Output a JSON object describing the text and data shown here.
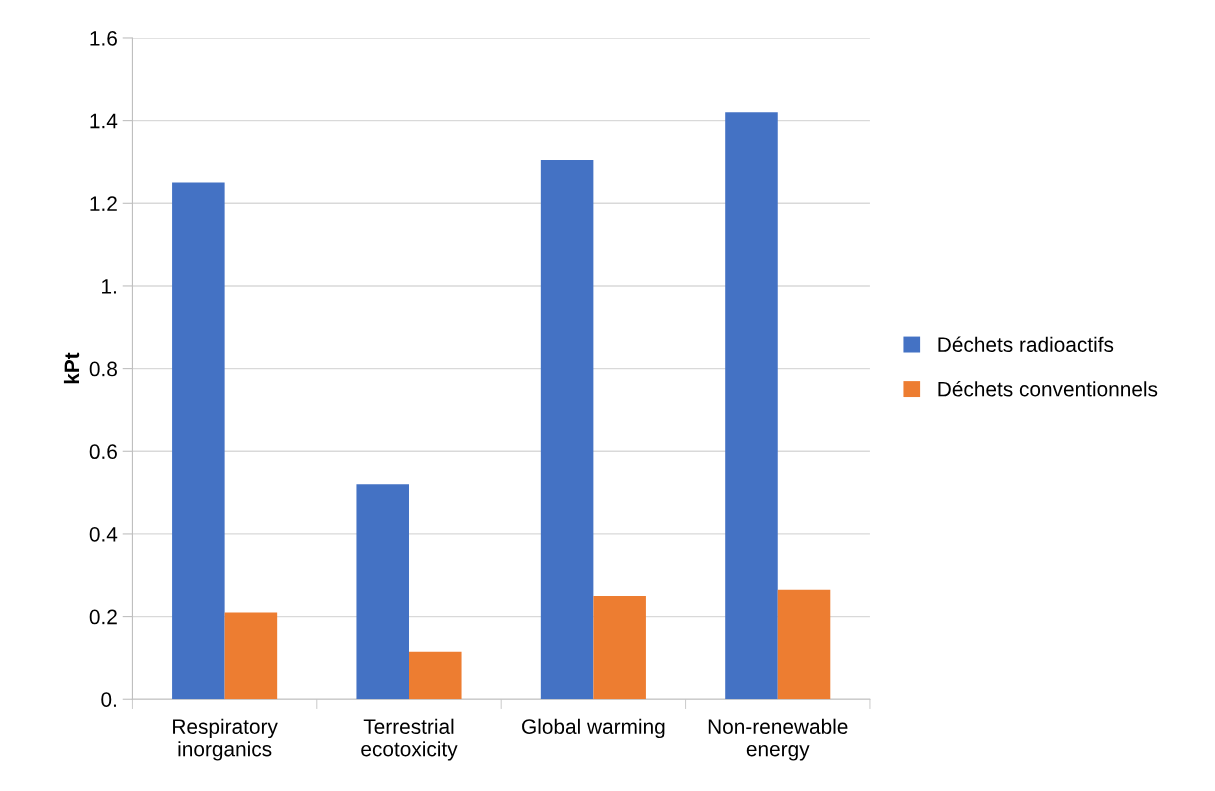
{
  "chart_data": {
    "type": "bar",
    "ylabel": "kPt",
    "categories": [
      "Respiratory\ninorganics",
      "Terrestrial\necotoxicity",
      "Global warming",
      "Non-renewable\nenergy"
    ],
    "series": [
      {
        "name": "Déchets radioactifs",
        "color": "#4472c4",
        "values": [
          1.25,
          0.52,
          1.305,
          1.42
        ]
      },
      {
        "name": "Déchets conventionnels",
        "color": "#ed7d31",
        "values": [
          0.21,
          0.115,
          0.25,
          0.265
        ]
      }
    ],
    "ylim": [
      0,
      1.6
    ],
    "yticks": [
      {
        "value": 0,
        "label": "0."
      },
      0.2,
      0.4,
      0.6,
      0.8,
      {
        "value": 1,
        "label": "1."
      },
      1.2,
      1.4,
      1.6
    ],
    "grid": "y",
    "legend": "right"
  }
}
